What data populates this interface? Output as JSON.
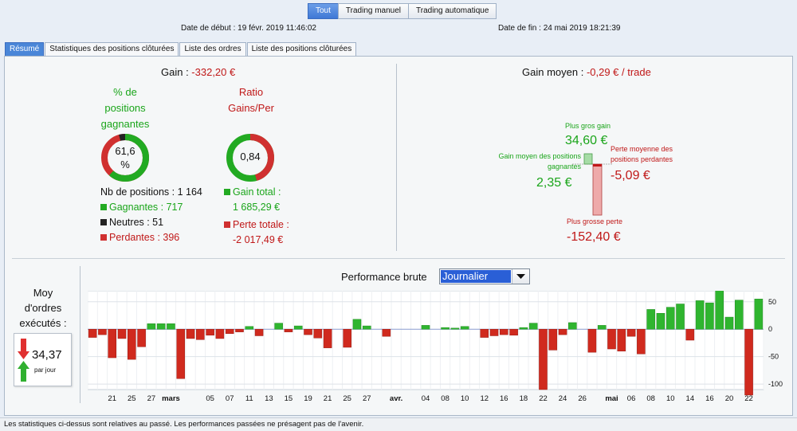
{
  "modes": [
    "Tout",
    "Trading manuel",
    "Trading automatique"
  ],
  "dates": {
    "start": "Date de début : 19 févr. 2019 11:46:02",
    "end": "Date de fin : 24 mai 2019 18:21:39"
  },
  "tabs": [
    "Résumé",
    "Statistiques des positions clôturées",
    "Liste des ordres",
    "Liste des positions clôturées"
  ],
  "summary": {
    "gain_label": "Gain : ",
    "gain_value": "-332,20 €",
    "pct_label_lines": [
      "% de",
      "positions",
      "gagnantes"
    ],
    "pct_value": "61,6 %",
    "pct_fraction": 0.616,
    "neutral_fraction": 0.044,
    "ratio_label_lines": [
      "Ratio",
      "Gains/Per"
    ],
    "ratio_value": "0,84",
    "ratio_fraction": 0.455,
    "nb_positions": "Nb de positions : 1 164",
    "gagnantes": "Gagnantes : 717",
    "neutres": "Neutres : 51",
    "perdantes": "Perdantes : 396",
    "gain_total_label": "Gain total :",
    "gain_total_value": "1 685,29 €",
    "perte_totale_label": "Perte totale :",
    "perte_totale_value": "-2 017,49 €"
  },
  "avg": {
    "title_label": "Gain moyen : ",
    "title_value": "-0,29 € / trade",
    "max_gain_label": "Plus gros gain",
    "max_gain_value": "34,60 €",
    "avg_gain_label_lines": [
      "Gain moyen des positions",
      "gagnantes"
    ],
    "avg_gain_value": "2,35 €",
    "avg_loss_label_lines": [
      "Perte moyenne des",
      "positions perdantes"
    ],
    "avg_loss_value": "-5,09 €",
    "max_loss_label": "Plus grosse perte",
    "max_loss_value": "-152,40 €"
  },
  "orders": {
    "label_lines": [
      "Moy",
      "d'ordres",
      "exécutés :"
    ],
    "value": "34,37",
    "unit": "par jour"
  },
  "performance": {
    "title": "Performance brute",
    "period": "Journalier"
  },
  "colors": {
    "gain": "#1aa51a",
    "loss": "#c01818",
    "neutral": "#222222",
    "accent": "#3f78d6"
  },
  "chart_data": {
    "type": "bar",
    "ylim": [
      -110,
      70
    ],
    "yticks": [
      50,
      0,
      -50,
      -100
    ],
    "grid": true,
    "xtick_labels": [
      {
        "i": 2,
        "label": "21"
      },
      {
        "i": 4,
        "label": "25"
      },
      {
        "i": 6,
        "label": "27"
      },
      {
        "i": 8,
        "label": "mars",
        "bold": true
      },
      {
        "i": 12,
        "label": "05"
      },
      {
        "i": 14,
        "label": "07"
      },
      {
        "i": 16,
        "label": "11"
      },
      {
        "i": 18,
        "label": "13"
      },
      {
        "i": 20,
        "label": "15"
      },
      {
        "i": 22,
        "label": "19"
      },
      {
        "i": 24,
        "label": "21"
      },
      {
        "i": 26,
        "label": "25"
      },
      {
        "i": 28,
        "label": "27"
      },
      {
        "i": 31,
        "label": "avr.",
        "bold": true
      },
      {
        "i": 34,
        "label": "04"
      },
      {
        "i": 36,
        "label": "08"
      },
      {
        "i": 38,
        "label": "10"
      },
      {
        "i": 40,
        "label": "12"
      },
      {
        "i": 42,
        "label": "16"
      },
      {
        "i": 44,
        "label": "18"
      },
      {
        "i": 46,
        "label": "22"
      },
      {
        "i": 48,
        "label": "24"
      },
      {
        "i": 50,
        "label": "26"
      },
      {
        "i": 53,
        "label": "mai",
        "bold": true
      },
      {
        "i": 55,
        "label": "06"
      },
      {
        "i": 57,
        "label": "08"
      },
      {
        "i": 59,
        "label": "10"
      },
      {
        "i": 61,
        "label": "14"
      },
      {
        "i": 63,
        "label": "16"
      },
      {
        "i": 65,
        "label": "20"
      },
      {
        "i": 67,
        "label": "22"
      }
    ],
    "values": [
      -15,
      -10,
      -52,
      -17,
      -55,
      -32,
      10,
      10,
      10,
      -90,
      -17,
      -19,
      -11,
      -17,
      -8,
      -5,
      5,
      -12,
      0,
      11,
      -5,
      6,
      -10,
      -16,
      -34,
      0,
      -33,
      18,
      6,
      0,
      -13,
      0,
      0,
      0,
      7,
      0,
      3,
      2,
      5,
      0,
      -15,
      -12,
      -10,
      -11,
      3,
      11,
      -110,
      -38,
      -10,
      12,
      0,
      -42,
      7,
      -36,
      -40,
      -13,
      -45,
      36,
      29,
      40,
      46,
      -20,
      52,
      48,
      82,
      22,
      53,
      -120,
      55
    ]
  },
  "footer": "Les statistiques ci-dessus sont relatives au passé. Les performances passées ne présagent pas de l'avenir."
}
